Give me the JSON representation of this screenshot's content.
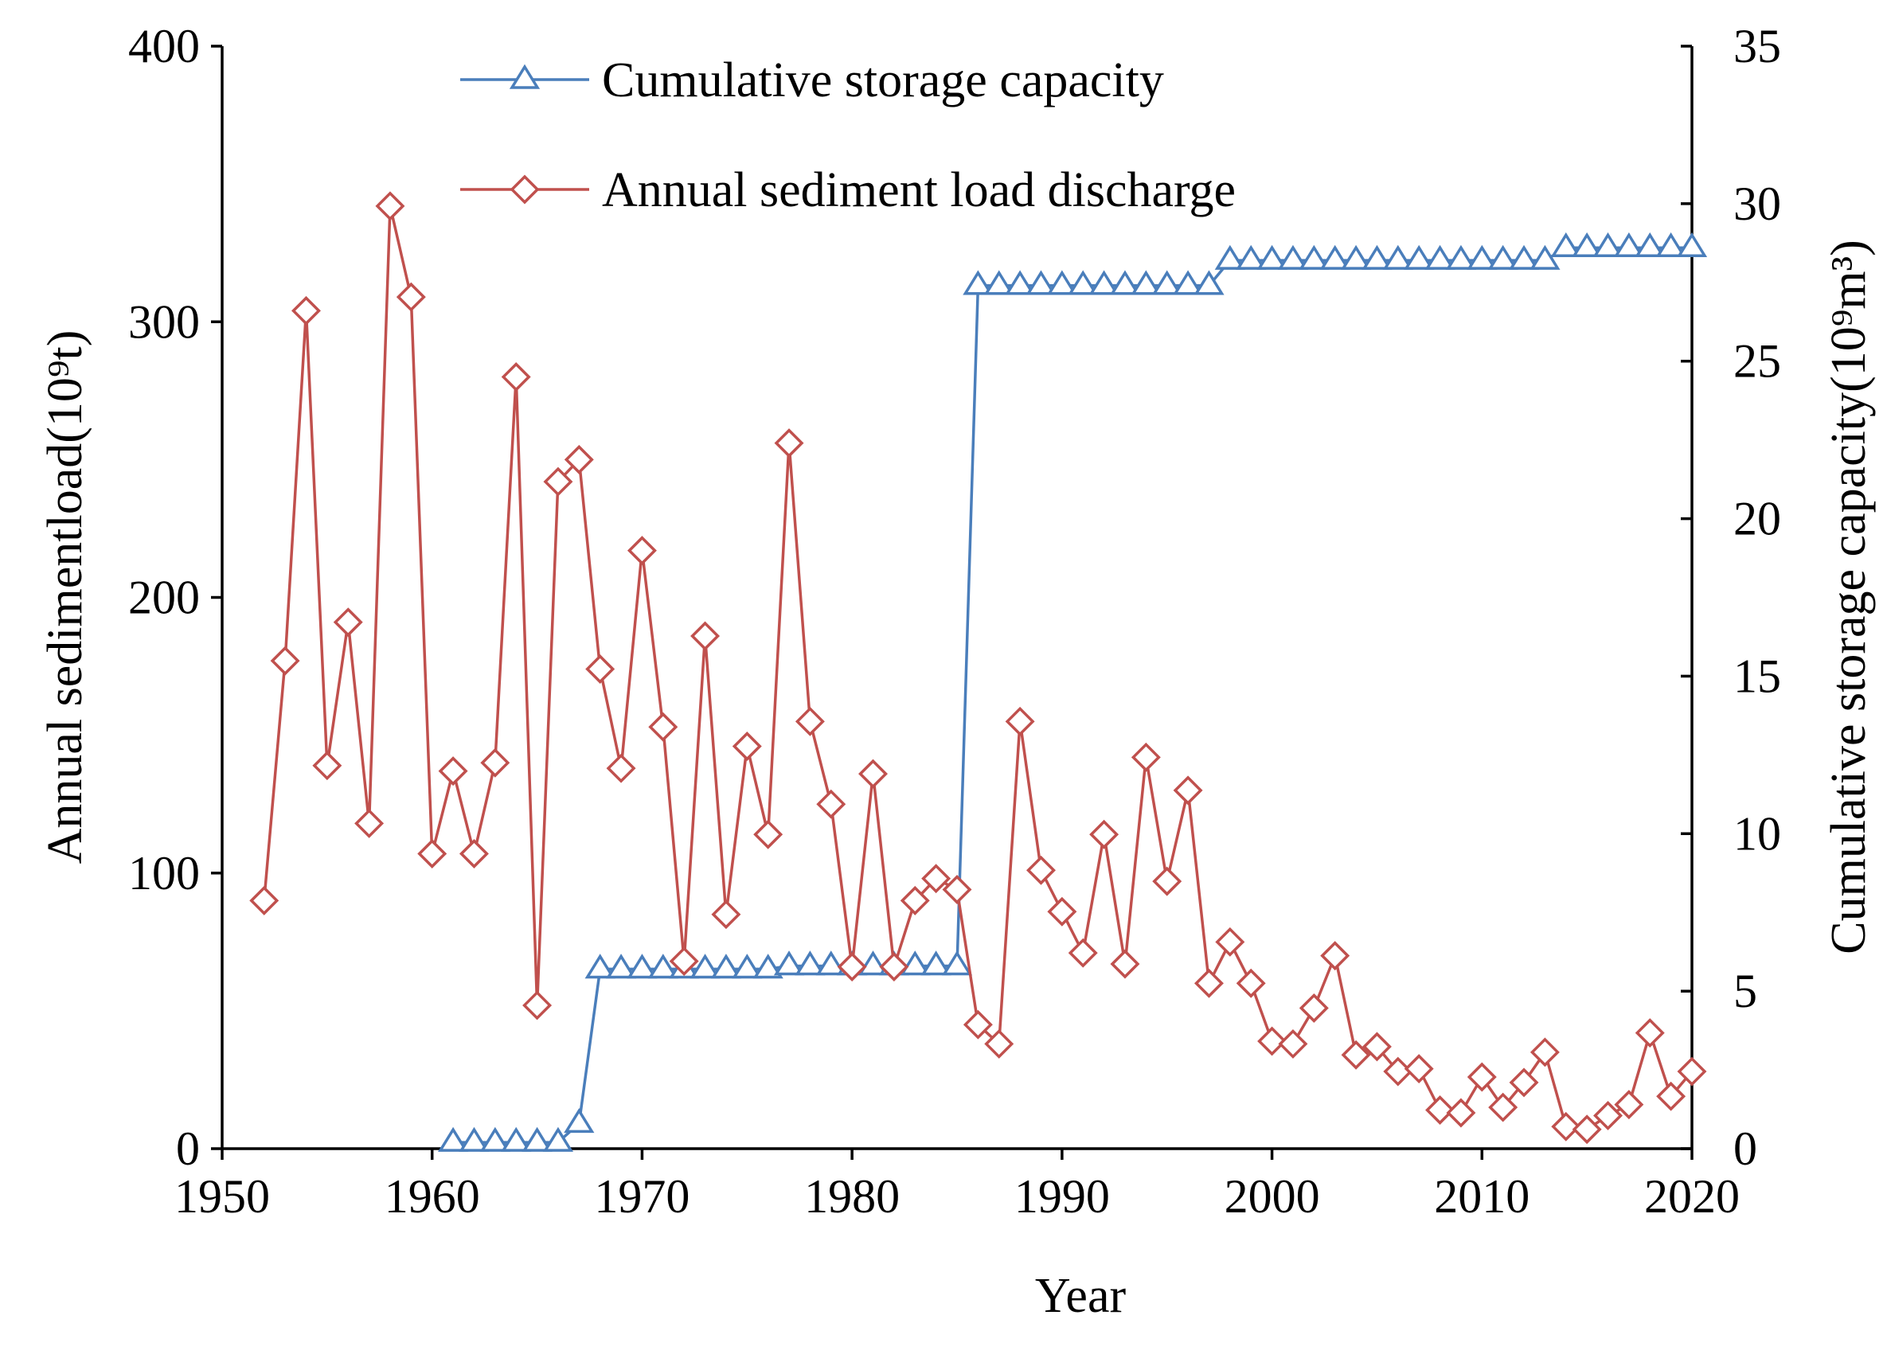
{
  "chart_data": {
    "type": "line",
    "xlabel": "Year",
    "ylabel_left": "Annual sedimentload(10⁹t)",
    "ylabel_right": "Cumulative storage capacity(10⁹m³)",
    "xlim": [
      1950,
      2020
    ],
    "ylim_left": [
      0,
      400
    ],
    "ylim_right": [
      0,
      35
    ],
    "x_ticks": [
      "1950",
      "1960",
      "1970",
      "1980",
      "1990",
      "2000",
      "2010",
      "2020"
    ],
    "y_left_ticks": [
      "0",
      "100",
      "200",
      "300",
      "400"
    ],
    "y_right_ticks": [
      "0",
      "5",
      "10",
      "15",
      "20",
      "25",
      "30",
      "35"
    ],
    "grid": false,
    "legend_position": "top-center",
    "series": [
      {
        "name": "Cumulative storage capacity",
        "axis": "right",
        "color": "#4a7ebb",
        "marker": "triangle",
        "x": [
          1961,
          1962,
          1963,
          1964,
          1965,
          1966,
          1967,
          1968,
          1969,
          1970,
          1971,
          1972,
          1973,
          1974,
          1975,
          1976,
          1977,
          1978,
          1979,
          1980,
          1981,
          1982,
          1983,
          1984,
          1985,
          1986,
          1987,
          1988,
          1989,
          1990,
          1991,
          1992,
          1993,
          1994,
          1995,
          1996,
          1997,
          1998,
          1999,
          2000,
          2001,
          2002,
          2003,
          2004,
          2005,
          2006,
          2007,
          2008,
          2009,
          2010,
          2011,
          2012,
          2013,
          2014,
          2015,
          2016,
          2017,
          2018,
          2019,
          2020
        ],
        "values": [
          0.2,
          0.2,
          0.2,
          0.2,
          0.2,
          0.2,
          0.8,
          5.7,
          5.7,
          5.7,
          5.7,
          5.7,
          5.7,
          5.7,
          5.7,
          5.7,
          5.8,
          5.8,
          5.8,
          5.8,
          5.8,
          5.8,
          5.8,
          5.8,
          5.8,
          27.4,
          27.4,
          27.4,
          27.4,
          27.4,
          27.4,
          27.4,
          27.4,
          27.4,
          27.4,
          27.4,
          27.4,
          28.2,
          28.2,
          28.2,
          28.2,
          28.2,
          28.2,
          28.2,
          28.2,
          28.2,
          28.2,
          28.2,
          28.2,
          28.2,
          28.2,
          28.2,
          28.2,
          28.6,
          28.6,
          28.6,
          28.6,
          28.6,
          28.6,
          28.6
        ]
      },
      {
        "name": "Annual sediment load discharge",
        "axis": "left",
        "color": "#c0504d",
        "marker": "diamond",
        "x": [
          1952,
          1953,
          1954,
          1955,
          1956,
          1957,
          1958,
          1959,
          1960,
          1961,
          1962,
          1963,
          1964,
          1965,
          1966,
          1967,
          1968,
          1969,
          1970,
          1971,
          1972,
          1973,
          1974,
          1975,
          1976,
          1977,
          1978,
          1979,
          1980,
          1981,
          1982,
          1983,
          1984,
          1985,
          1986,
          1987,
          1988,
          1989,
          1990,
          1991,
          1992,
          1993,
          1994,
          1995,
          1996,
          1997,
          1998,
          1999,
          2000,
          2001,
          2002,
          2003,
          2004,
          2005,
          2006,
          2007,
          2008,
          2009,
          2010,
          2011,
          2012,
          2013,
          2014,
          2015,
          2016,
          2017,
          2018,
          2019,
          2020
        ],
        "values": [
          90,
          177,
          304,
          139,
          191,
          118,
          342,
          309,
          107,
          137,
          107,
          140,
          280,
          52,
          242,
          250,
          174,
          138,
          217,
          153,
          68,
          186,
          85,
          146,
          114,
          256,
          155,
          125,
          66,
          136,
          66,
          90,
          98,
          94,
          45,
          38,
          155,
          101,
          86,
          71,
          114,
          67,
          142,
          97,
          130,
          60,
          75,
          60,
          39,
          38,
          51,
          70,
          34,
          37,
          28,
          29,
          14,
          13,
          26,
          15,
          24,
          35,
          8,
          7,
          12,
          16,
          42,
          19,
          28
        ]
      }
    ]
  }
}
